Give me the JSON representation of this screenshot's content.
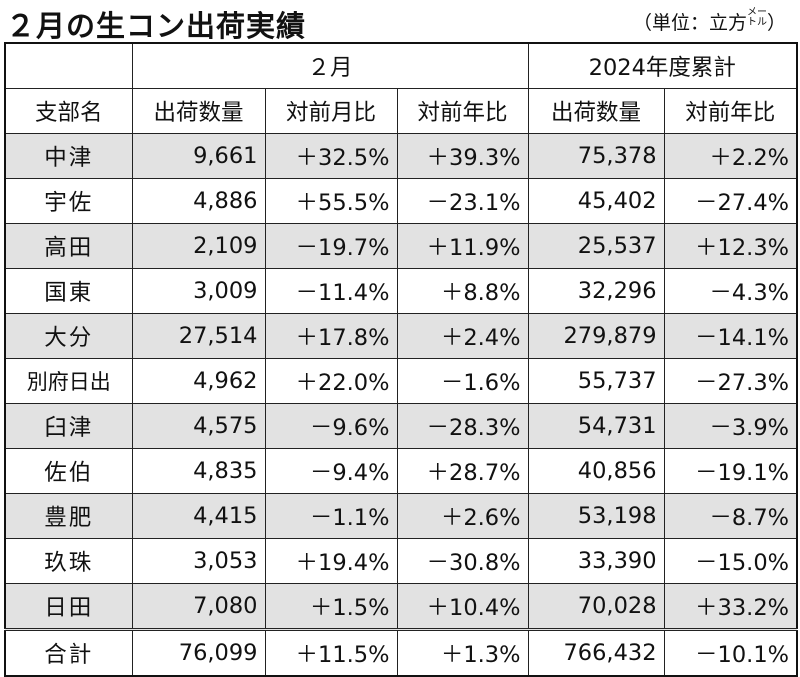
{
  "title": "２月の生コン出荷実績",
  "unit": {
    "prefix": "（単位：立方",
    "sup": "メー",
    "sub": "トル",
    "suffix": "）"
  },
  "headers": {
    "group_month": "２月",
    "group_cumulative": "2024年度累計",
    "branch": "支部名",
    "shipments": "出荷数量",
    "mom": "対前月比",
    "yoy": "対前年比",
    "cum_shipments": "出荷数量",
    "cum_yoy": "対前年比"
  },
  "rows": [
    [
      "中津",
      "9,661",
      "＋32.5%",
      "＋39.3%",
      "75,378",
      "＋2.2%"
    ],
    [
      "宇佐",
      "4,886",
      "＋55.5%",
      "－23.1%",
      "45,402",
      "－27.4%"
    ],
    [
      "高田",
      "2,109",
      "－19.7%",
      "＋11.9%",
      "25,537",
      "＋12.3%"
    ],
    [
      "国東",
      "3,009",
      "－11.4%",
      "＋8.8%",
      "32,296",
      "－4.3%"
    ],
    [
      "大分",
      "27,514",
      "＋17.8%",
      "＋2.4%",
      "279,879",
      "－14.1%"
    ],
    [
      "別府日出",
      "4,962",
      "＋22.0%",
      "－1.6%",
      "55,737",
      "－27.3%"
    ],
    [
      "臼津",
      "4,575",
      "－9.6%",
      "－28.3%",
      "54,731",
      "－3.9%"
    ],
    [
      "佐伯",
      "4,835",
      "－9.4%",
      "＋28.7%",
      "40,856",
      "－19.1%"
    ],
    [
      "豊肥",
      "4,415",
      "－1.1%",
      "＋2.6%",
      "53,198",
      "－8.7%"
    ],
    [
      "玖珠",
      "3,053",
      "＋19.4%",
      "－30.8%",
      "33,390",
      "－15.0%"
    ],
    [
      "日田",
      "7,080",
      "＋1.5%",
      "＋10.4%",
      "70,028",
      "＋33.2%"
    ]
  ],
  "total": [
    "合計",
    "76,099",
    "＋11.5%",
    "＋1.3%",
    "766,432",
    "－10.1%"
  ]
}
